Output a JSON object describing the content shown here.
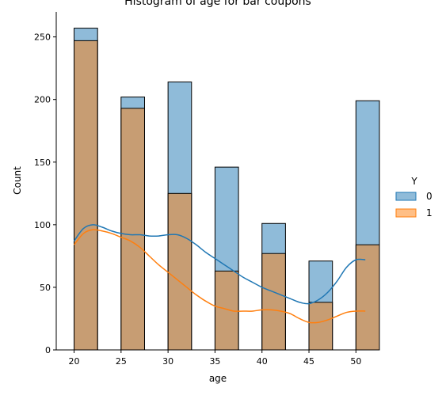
{
  "chart_data": {
    "type": "bar",
    "title": "Histogram of age for bar coupons",
    "xlabel": "age",
    "ylabel": "Count",
    "xlim": [
      18.1,
      52.5
    ],
    "ylim": [
      0,
      270
    ],
    "xticks": [
      20,
      25,
      30,
      35,
      40,
      45,
      50
    ],
    "yticks": [
      0,
      50,
      100,
      150,
      200,
      250
    ],
    "bin_ranges": [
      [
        20,
        22.5
      ],
      [
        25,
        27.5
      ],
      [
        30,
        32.5
      ],
      [
        35,
        37.5
      ],
      [
        40,
        42.5
      ],
      [
        45,
        47.5
      ],
      [
        50,
        52.5
      ]
    ],
    "legend": {
      "title": "Y",
      "position": "right"
    },
    "series": [
      {
        "name": "0",
        "color": "#1f77b4",
        "values": [
          257,
          202,
          214,
          146,
          101,
          71,
          199
        ]
      },
      {
        "name": "1",
        "color": "#ff7f0e",
        "values": [
          247,
          193,
          125,
          63,
          77,
          38,
          84
        ]
      }
    ],
    "kde": [
      {
        "name": "0",
        "color": "#1f77b4",
        "x": [
          20,
          21,
          22,
          23,
          24,
          25,
          26,
          27,
          28,
          29,
          30,
          31,
          32,
          33,
          34,
          35,
          36,
          37,
          38,
          39,
          40,
          41,
          42,
          43,
          44,
          45,
          46,
          47,
          48,
          49,
          50,
          51
        ],
        "y": [
          87,
          97,
          100,
          98,
          95,
          93,
          92,
          92,
          91,
          91,
          92,
          92,
          89,
          84,
          78,
          73,
          68,
          63,
          58,
          54,
          50,
          47,
          44,
          41,
          38,
          37,
          40,
          46,
          55,
          66,
          72,
          72
        ]
      },
      {
        "name": "1",
        "color": "#ff7f0e",
        "x": [
          20,
          21,
          22,
          23,
          24,
          25,
          26,
          27,
          28,
          29,
          30,
          31,
          32,
          33,
          34,
          35,
          36,
          37,
          38,
          39,
          40,
          41,
          42,
          43,
          44,
          45,
          46,
          47,
          48,
          49,
          50,
          51
        ],
        "y": [
          84,
          93,
          96,
          95,
          93,
          90,
          87,
          82,
          75,
          68,
          62,
          56,
          50,
          44,
          39,
          35,
          33,
          31,
          31,
          31,
          32,
          32,
          31,
          29,
          25,
          22,
          22,
          24,
          27,
          30,
          31,
          31
        ]
      }
    ]
  }
}
